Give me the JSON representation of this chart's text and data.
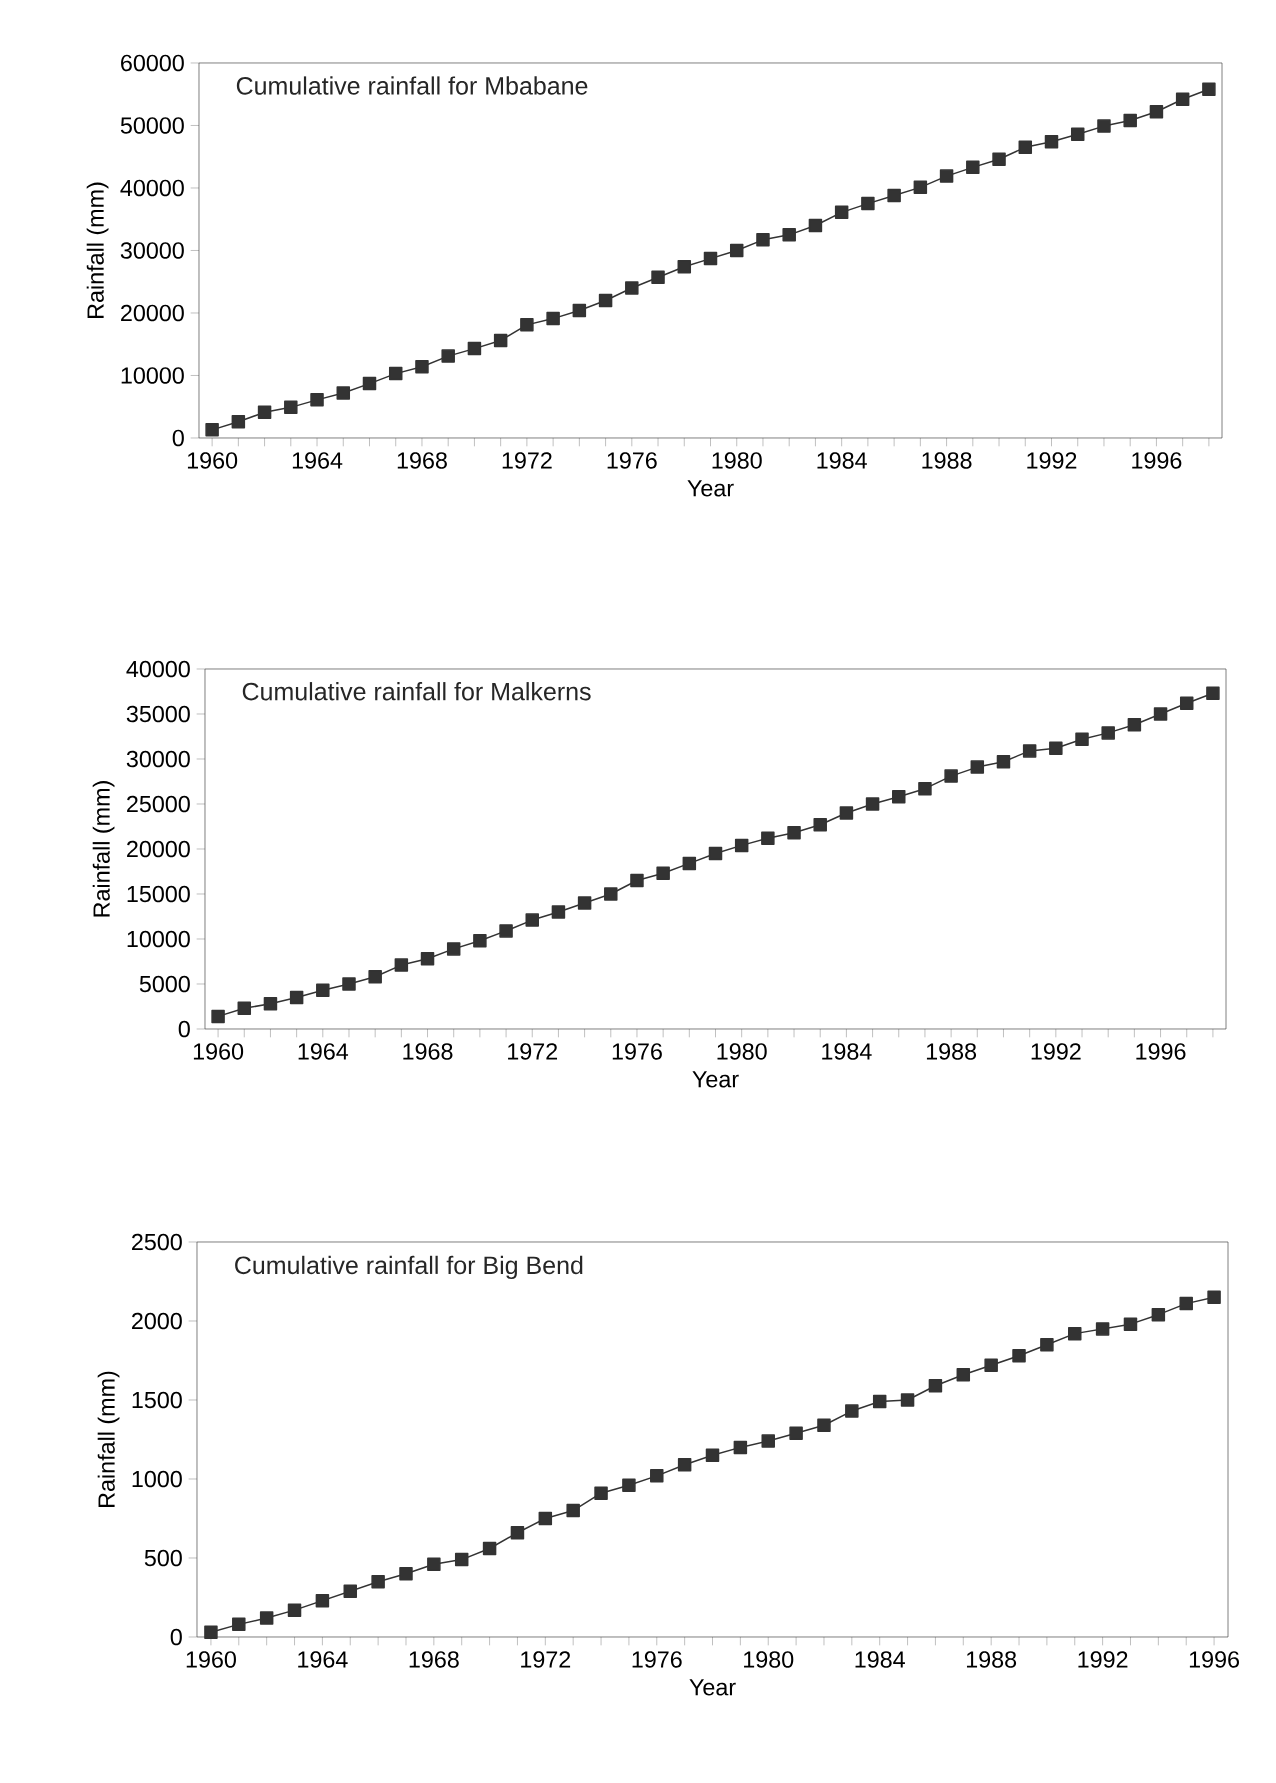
{
  "chart_data": [
    {
      "type": "line",
      "title": "Cumulative rainfall for Mbabane",
      "xlabel": "Year",
      "ylabel": "Rainfall (mm)",
      "color": "#333333",
      "marker": "square",
      "categories": [
        "1960",
        null,
        null,
        null,
        "1964",
        null,
        null,
        null,
        "1968",
        null,
        null,
        null,
        "1972",
        null,
        null,
        null,
        "1976",
        null,
        null,
        null,
        "1980",
        null,
        null,
        null,
        "1984",
        null,
        null,
        null,
        "1988",
        null,
        null,
        null,
        "1992",
        null,
        null,
        null,
        "1996",
        null,
        null
      ],
      "values": [
        1300,
        2600,
        4100,
        4900,
        6100,
        7200,
        8700,
        10300,
        11400,
        13100,
        14300,
        15600,
        18100,
        19100,
        20400,
        22000,
        24000,
        25700,
        27400,
        28700,
        30000,
        31700,
        32500,
        34000,
        36100,
        37500,
        38800,
        40100,
        41900,
        43300,
        44600,
        46500,
        47400,
        48600,
        49900,
        50800,
        52200,
        54200,
        55800
      ],
      "ylim": [
        0,
        60000
      ],
      "yticks": [
        0,
        10000,
        20000,
        30000,
        40000,
        50000,
        60000
      ]
    },
    {
      "type": "line",
      "title": "Cumulative rainfall for Malkerns",
      "xlabel": "Year",
      "ylabel": "Rainfall (mm)",
      "color": "#333333",
      "marker": "square",
      "categories": [
        "1960",
        null,
        null,
        null,
        "1964",
        null,
        null,
        null,
        "1968",
        null,
        null,
        null,
        "1972",
        null,
        null,
        null,
        "1976",
        null,
        null,
        null,
        "1980",
        null,
        null,
        null,
        "1984",
        null,
        null,
        null,
        "1988",
        null,
        null,
        null,
        "1992",
        null,
        null,
        null,
        "1996",
        null,
        null
      ],
      "values": [
        1400,
        2300,
        2800,
        3500,
        4300,
        5000,
        5800,
        7100,
        7800,
        8900,
        9800,
        10900,
        12100,
        13000,
        14000,
        15000,
        16500,
        17300,
        18400,
        19500,
        20400,
        21200,
        21800,
        22700,
        24000,
        25000,
        25800,
        26700,
        28100,
        29100,
        29700,
        30900,
        31200,
        32200,
        32900,
        33800,
        35000,
        36200,
        37300
      ],
      "ylim": [
        0,
        40000
      ],
      "yticks": [
        0,
        5000,
        10000,
        15000,
        20000,
        25000,
        30000,
        35000,
        40000
      ]
    },
    {
      "type": "line",
      "title": "Cumulative rainfall for Big Bend",
      "xlabel": "Year",
      "ylabel": "Rainfall (mm)",
      "color": "#333333",
      "marker": "square",
      "categories": [
        "1960",
        null,
        null,
        null,
        "1964",
        null,
        null,
        null,
        "1968",
        null,
        null,
        null,
        "1972",
        null,
        null,
        null,
        "1976",
        null,
        null,
        null,
        "1980",
        null,
        null,
        null,
        "1984",
        null,
        null,
        null,
        "1988",
        null,
        null,
        null,
        "1992",
        null,
        null,
        null,
        "1996"
      ],
      "values": [
        30,
        80,
        120,
        170,
        230,
        290,
        350,
        400,
        460,
        490,
        560,
        660,
        750,
        800,
        910,
        960,
        1020,
        1090,
        1150,
        1200,
        1240,
        1290,
        1340,
        1430,
        1490,
        1500,
        1590,
        1660,
        1720,
        1780,
        1850,
        1920,
        1950,
        1980,
        2040,
        2110,
        2150
      ],
      "ylim": [
        0,
        2500
      ],
      "yticks": [
        0,
        500,
        1000,
        1500,
        2000,
        2500
      ]
    }
  ]
}
